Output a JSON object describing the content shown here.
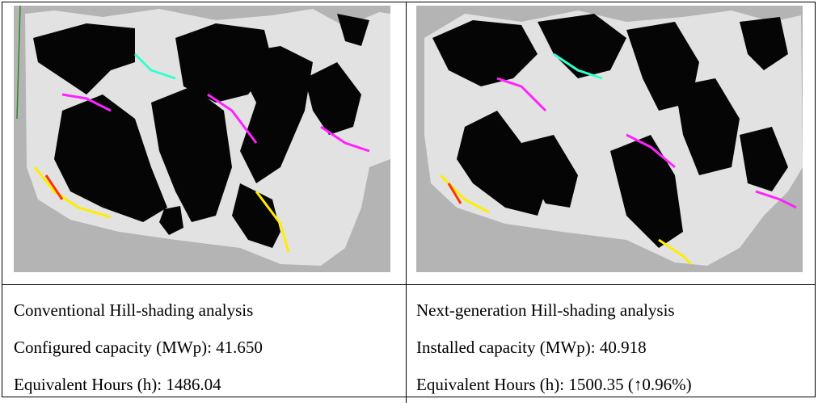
{
  "panels": [
    {
      "caption": "Conventional Hill-shading analysis",
      "capacity": "Configured capacity (MWp): 41.650",
      "hours": "Equivalent Hours (h): 1486.04"
    },
    {
      "caption": "Next-generation Hill-shading analysis",
      "capacity": "Installed capacity (MWp): 40.918",
      "hours": "Equivalent Hours (h): 1500.35 (↑0.96%)"
    }
  ],
  "colors": {
    "background": "#b3b3b3",
    "terrain": "#e3e3e3",
    "panels": "#050505",
    "shade_magenta": "#ff22ff",
    "shade_cyan": "#33ffcc",
    "shade_yellow": "#ffee00",
    "shade_red": "#ff3300"
  }
}
